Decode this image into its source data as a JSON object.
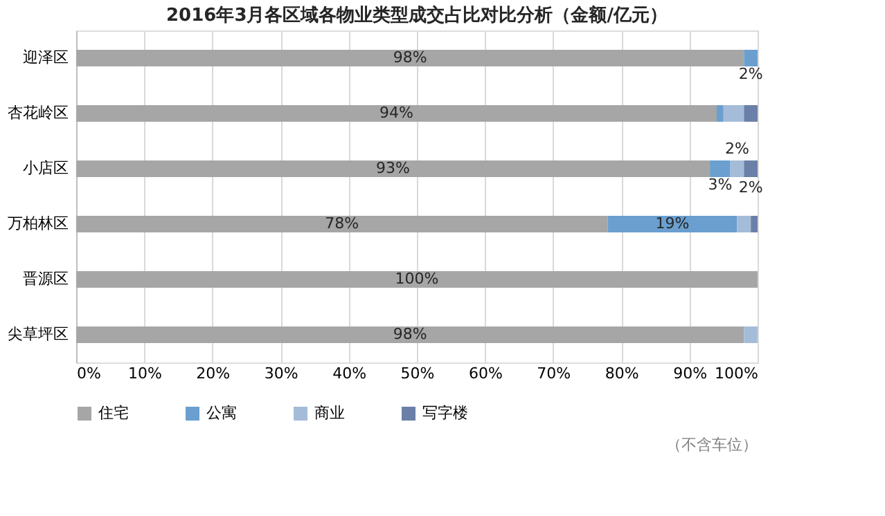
{
  "chart_data": {
    "type": "bar",
    "orientation": "horizontal",
    "stacked": true,
    "title": "2016年3月各区域各物业类型成交占比对比分析（金额/亿元）",
    "categories": [
      "迎泽区",
      "杏花岭区",
      "小店区",
      "万柏林区",
      "晋源区",
      "尖草坪区"
    ],
    "series": [
      {
        "name": "住宅",
        "color": "#a6a6a6",
        "values": [
          98,
          94,
          93,
          78,
          100,
          98
        ],
        "value_labels": [
          "98%",
          "94%",
          "93%",
          "78%",
          "100%",
          "98%"
        ]
      },
      {
        "name": "公寓",
        "color": "#6a9fcf",
        "values": [
          2,
          1,
          3,
          19,
          0,
          0
        ],
        "value_labels": [
          "2%",
          null,
          "3%",
          "19%",
          null,
          null
        ]
      },
      {
        "name": "商业",
        "color": "#a5bcd8",
        "values": [
          0,
          3,
          2,
          2,
          0,
          2
        ],
        "value_labels": [
          null,
          null,
          "2%",
          null,
          null,
          null
        ]
      },
      {
        "name": "写字楼",
        "color": "#6b80a8",
        "values": [
          0,
          2,
          2,
          1,
          0,
          0
        ],
        "value_labels": [
          null,
          null,
          "2%",
          null,
          null,
          null
        ]
      }
    ],
    "xlim": [
      0,
      100
    ],
    "xticks": [
      {
        "value": 0,
        "label": "0%"
      },
      {
        "value": 10,
        "label": "10%"
      },
      {
        "value": 20,
        "label": "20%"
      },
      {
        "value": 30,
        "label": "30%"
      },
      {
        "value": 40,
        "label": "40%"
      },
      {
        "value": 50,
        "label": "50%"
      },
      {
        "value": 60,
        "label": "60%"
      },
      {
        "value": 70,
        "label": "70%"
      },
      {
        "value": 80,
        "label": "80%"
      },
      {
        "value": 90,
        "label": "90%"
      },
      {
        "value": 100,
        "label": "100%"
      }
    ],
    "grid": "x",
    "legend": "bottom",
    "annotations": [
      "（不含车位）"
    ]
  }
}
